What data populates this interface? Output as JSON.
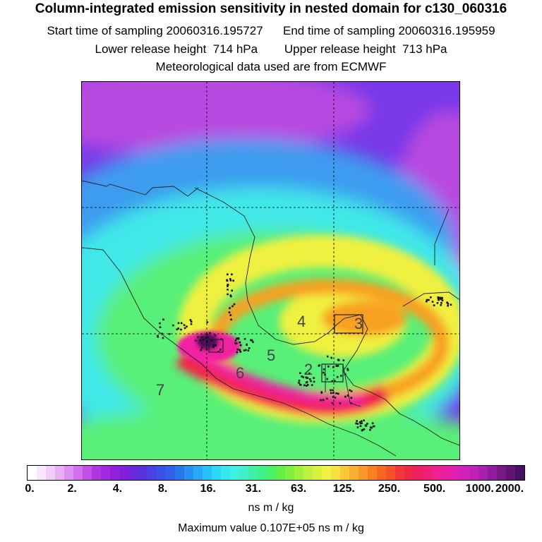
{
  "header": {
    "title": "Column-integrated emission sensitivity in nested domain for c130_060316",
    "start_label": "Start time of sampling 20060316.195727",
    "end_label": "End time of sampling 20060316.195959",
    "lower_label": "Lower release height  714 hPa",
    "upper_label": "Upper release height  713 hPa",
    "met_label": "Meteorological data used are from ECMWF"
  },
  "map": {
    "labels": [
      "2",
      "3",
      "4",
      "5",
      "6",
      "7"
    ],
    "colors": {
      "background_far": "#b848e0",
      "background_top": "#7838e8",
      "mid_blue": "#3c9cf0",
      "cyan": "#40e8e8",
      "green": "#58f078",
      "yellow": "#f0f040",
      "orange": "#f8a020",
      "red": "#f02848",
      "magenta": "#f020a0",
      "dark": "#501060"
    }
  },
  "colorbar": {
    "ticks": [
      "0.",
      "2.",
      "4.",
      "8.",
      "16.",
      "31.",
      "63.",
      "125.",
      "250.",
      "500.",
      "1000.",
      "2000."
    ],
    "colors": [
      "#ffffff",
      "#f8e8fc",
      "#f0d0f8",
      "#e8b0f4",
      "#dc90f0",
      "#d070ec",
      "#c050e8",
      "#b038e4",
      "#a028e0",
      "#9020dc",
      "#8020d8",
      "#6a28d8",
      "#5830dc",
      "#4840e0",
      "#3850e4",
      "#3060e8",
      "#2878ec",
      "#2890f0",
      "#28a8f4",
      "#28c0f8",
      "#30d8f8",
      "#38e8f0",
      "#40f0e0",
      "#40f0c8",
      "#40f0a8",
      "#40f088",
      "#48f068",
      "#60f048",
      "#80f040",
      "#a0f040",
      "#c0f040",
      "#d8f040",
      "#f0f040",
      "#f8e040",
      "#f8c838",
      "#f8b030",
      "#f89828",
      "#f88020",
      "#f86820",
      "#f85028",
      "#f03838",
      "#f02848",
      "#f02060",
      "#f02078",
      "#f02090",
      "#e820a0",
      "#e020b0",
      "#d020b8",
      "#c020b8",
      "#a820b0",
      "#901c9c",
      "#781888",
      "#601474",
      "#481060"
    ],
    "units": "ns m / kg",
    "max_value": "Maximum value  0.107E+05 ns m / kg"
  }
}
